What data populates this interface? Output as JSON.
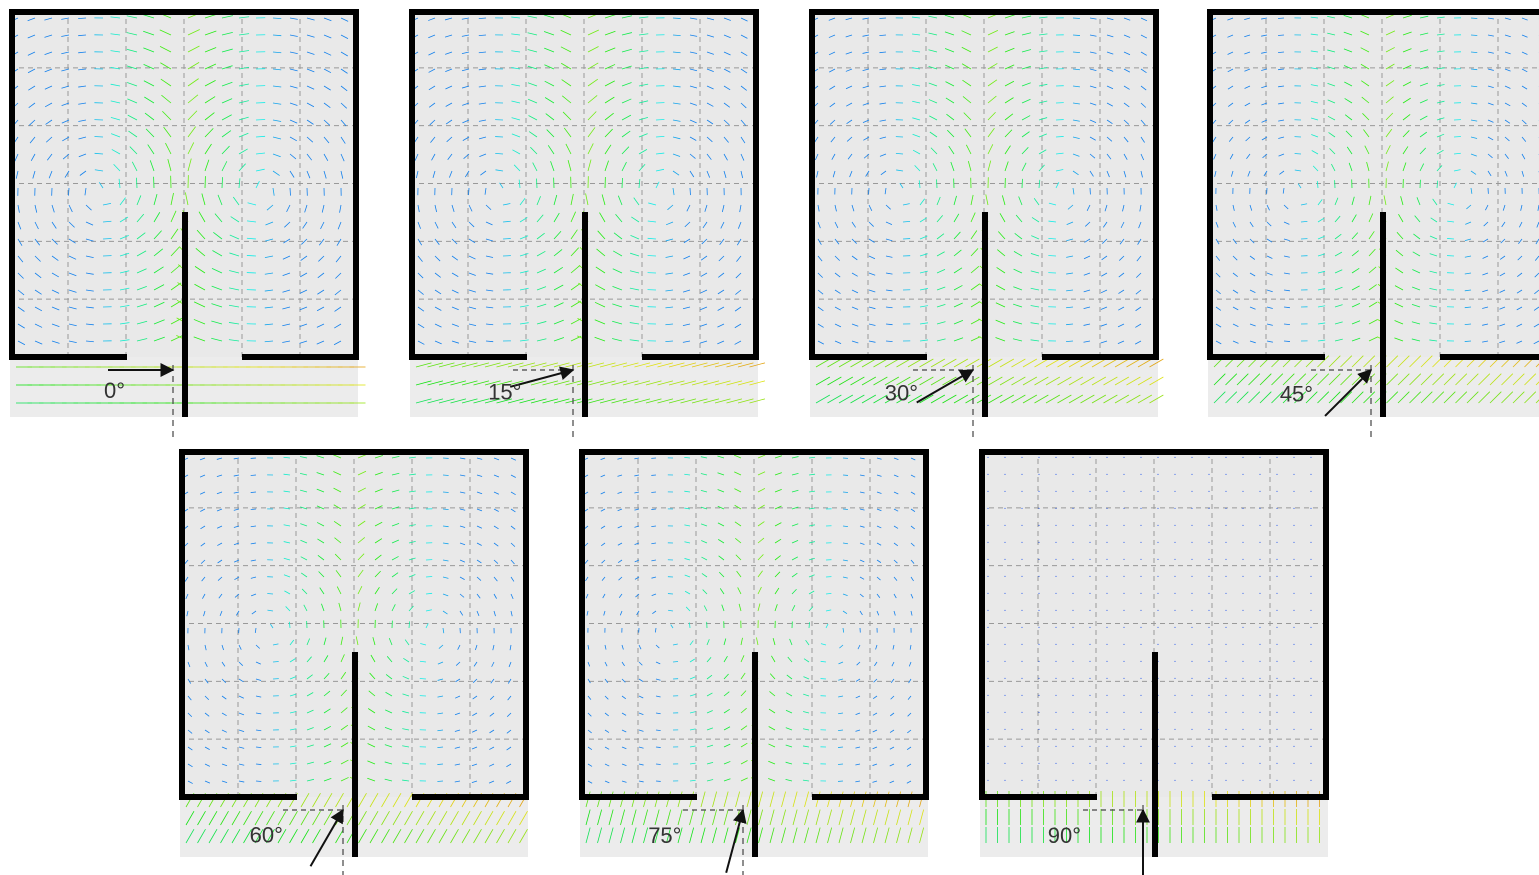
{
  "panels": [
    {
      "label": "0°"
    },
    {
      "label": "15°"
    },
    {
      "label": "30°"
    },
    {
      "label": "45°"
    },
    {
      "label": "60°"
    },
    {
      "label": "75°"
    },
    {
      "label": "90°"
    }
  ]
}
